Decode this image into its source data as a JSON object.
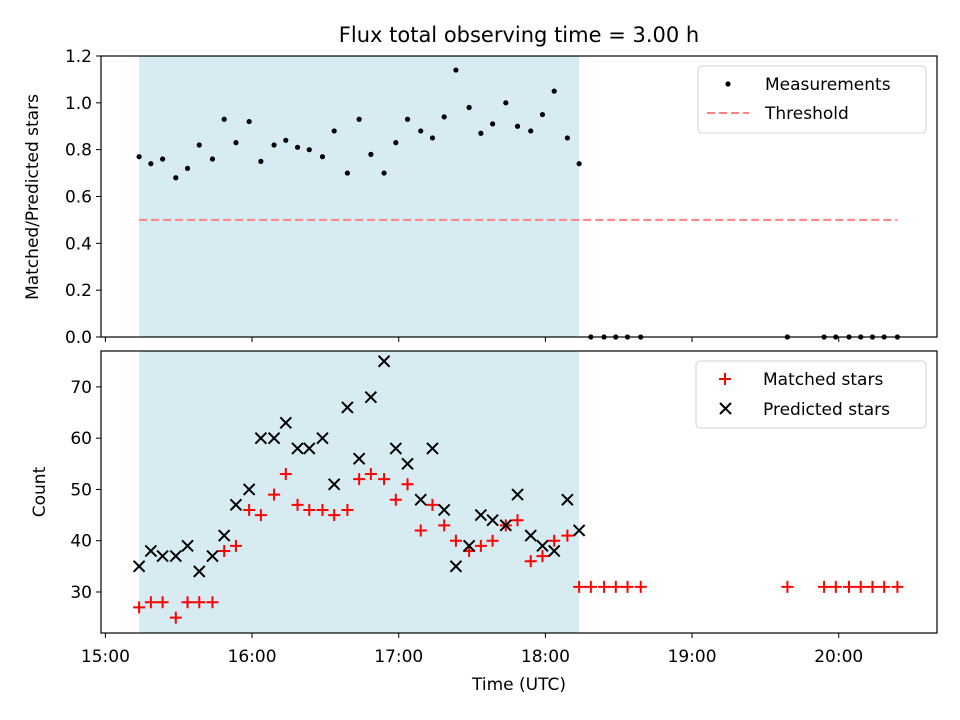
{
  "chart_data": {
    "title": "Flux total observing time = 3.00 h",
    "xlabel": "Time (UTC)",
    "x_unit": "decimal hours UTC",
    "xlim": [
      14.97,
      20.67
    ],
    "x_ticks": [
      {
        "value": 15.0,
        "label": "15:00"
      },
      {
        "value": 16.0,
        "label": "16:00"
      },
      {
        "value": 17.0,
        "label": "17:00"
      },
      {
        "value": 18.0,
        "label": "18:00"
      },
      {
        "value": 19.0,
        "label": "19:00"
      },
      {
        "value": 20.0,
        "label": "20:00"
      }
    ],
    "observing_window": {
      "start": 15.23,
      "end": 18.23,
      "color": "#add8e6"
    },
    "panels": [
      {
        "type": "scatter",
        "ylabel": "Matched/Predicted stars",
        "ylim": [
          0,
          1.2
        ],
        "y_ticks": [
          "0.0",
          "0.2",
          "0.4",
          "0.6",
          "0.8",
          "1.0",
          "1.2"
        ],
        "legend_position": "top-right",
        "series": [
          {
            "name": "Measurements",
            "marker": "dot",
            "color": "#000000",
            "x": [
              15.23,
              15.31,
              15.39,
              15.48,
              15.56,
              15.64,
              15.73,
              15.81,
              15.89,
              15.98,
              16.06,
              16.15,
              16.23,
              16.31,
              16.39,
              16.48,
              16.56,
              16.65,
              16.73,
              16.81,
              16.9,
              16.98,
              17.06,
              17.15,
              17.23,
              17.31,
              17.39,
              17.48,
              17.56,
              17.64,
              17.73,
              17.81,
              17.9,
              17.98,
              18.06,
              18.15,
              18.23,
              18.31,
              18.4,
              18.48,
              18.56,
              18.65,
              19.65,
              19.9,
              19.98,
              20.07,
              20.15,
              20.23,
              20.31,
              20.4
            ],
            "y": [
              0.77,
              0.74,
              0.76,
              0.68,
              0.72,
              0.82,
              0.76,
              0.93,
              0.83,
              0.92,
              0.75,
              0.82,
              0.84,
              0.81,
              0.8,
              0.77,
              0.88,
              0.7,
              0.93,
              0.78,
              0.7,
              0.83,
              0.93,
              0.88,
              0.85,
              0.94,
              1.14,
              0.98,
              0.87,
              0.91,
              1.0,
              0.9,
              0.88,
              0.95,
              1.05,
              0.85,
              0.74,
              0,
              0,
              0,
              0,
              0,
              0,
              0,
              0,
              0,
              0,
              0,
              0,
              0
            ]
          },
          {
            "name": "Threshold",
            "marker": "dashed-line",
            "color": "#ff8080",
            "x": [
              15.23,
              20.4
            ],
            "y": [
              0.5,
              0.5
            ]
          }
        ]
      },
      {
        "type": "scatter",
        "ylabel": "Count",
        "ylim": [
          22,
          77
        ],
        "y_ticks": [
          "30",
          "40",
          "50",
          "60",
          "70"
        ],
        "legend_position": "top-right",
        "series": [
          {
            "name": "Matched stars",
            "marker": "plus",
            "color": "#ff0000",
            "x": [
              15.23,
              15.31,
              15.39,
              15.48,
              15.56,
              15.64,
              15.73,
              15.81,
              15.89,
              15.98,
              16.06,
              16.15,
              16.23,
              16.31,
              16.39,
              16.48,
              16.56,
              16.65,
              16.73,
              16.81,
              16.9,
              16.98,
              17.06,
              17.15,
              17.23,
              17.31,
              17.39,
              17.48,
              17.56,
              17.64,
              17.73,
              17.81,
              17.9,
              17.98,
              18.06,
              18.15,
              18.23,
              18.31,
              18.4,
              18.48,
              18.56,
              18.65,
              19.65,
              19.9,
              19.98,
              20.07,
              20.15,
              20.23,
              20.31,
              20.4
            ],
            "y": [
              27,
              28,
              28,
              25,
              28,
              28,
              28,
              38,
              39,
              46,
              45,
              49,
              53,
              47,
              46,
              46,
              45,
              46,
              52,
              53,
              52,
              48,
              51,
              42,
              47,
              43,
              40,
              38,
              39,
              40,
              43,
              44,
              36,
              37,
              40,
              41,
              31,
              31,
              31,
              31,
              31,
              31,
              31,
              31,
              31,
              31,
              31,
              31,
              31,
              31
            ]
          },
          {
            "name": "Predicted stars",
            "marker": "x",
            "color": "#000000",
            "x": [
              15.23,
              15.31,
              15.39,
              15.48,
              15.56,
              15.64,
              15.73,
              15.81,
              15.89,
              15.98,
              16.06,
              16.15,
              16.23,
              16.31,
              16.39,
              16.48,
              16.56,
              16.65,
              16.73,
              16.81,
              16.9,
              16.98,
              17.06,
              17.15,
              17.23,
              17.31,
              17.39,
              17.48,
              17.56,
              17.64,
              17.73,
              17.81,
              17.9,
              17.98,
              18.06,
              18.15,
              18.23
            ],
            "y": [
              35,
              38,
              37,
              37,
              39,
              34,
              37,
              41,
              47,
              50,
              60,
              60,
              63,
              58,
              58,
              60,
              51,
              66,
              56,
              68,
              75,
              58,
              55,
              48,
              58,
              46,
              35,
              39,
              45,
              44,
              43,
              49,
              41,
              39,
              38,
              48,
              42
            ]
          }
        ]
      }
    ]
  }
}
